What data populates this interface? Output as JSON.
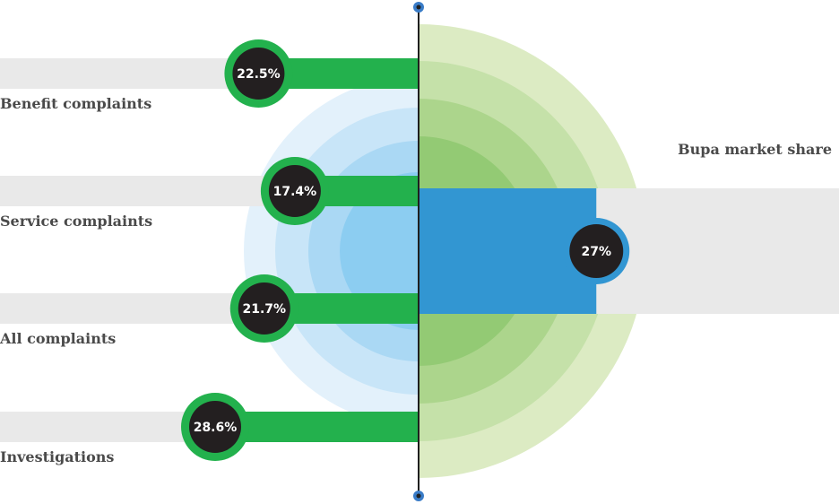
{
  "colors": {
    "track": "#e9e9e9",
    "bar_green": "#23b14d",
    "bar_blue": "#3296d2",
    "badge_fill": "#231f20",
    "badge_text": "#ffffff",
    "axis": "#1f1f1f",
    "axis_dot": "#3a7cc7",
    "blue_rings": [
      "#e3f1fb",
      "#c8e5f8",
      "#aad8f4",
      "#8ccdf1"
    ],
    "green_rings": [
      "#dcebc3",
      "#c5e1a9",
      "#acd58c",
      "#93ca74"
    ],
    "label_text": "#4a4a4a"
  },
  "chart_data": {
    "type": "bar",
    "title": "",
    "xlabel": "",
    "ylabel": "",
    "scale_max": 28.6,
    "left_series": {
      "categories": [
        "Benefit complaints",
        "Service complaints",
        "All complaints",
        "Investigations"
      ],
      "values": [
        22.5,
        17.4,
        21.7,
        28.6
      ],
      "labels": [
        "22.5%",
        "17.4%",
        "21.7%",
        "28.6%"
      ]
    },
    "right_series": {
      "categories": [
        "Bupa market share"
      ],
      "values": [
        27
      ],
      "labels": [
        "27%"
      ]
    }
  }
}
